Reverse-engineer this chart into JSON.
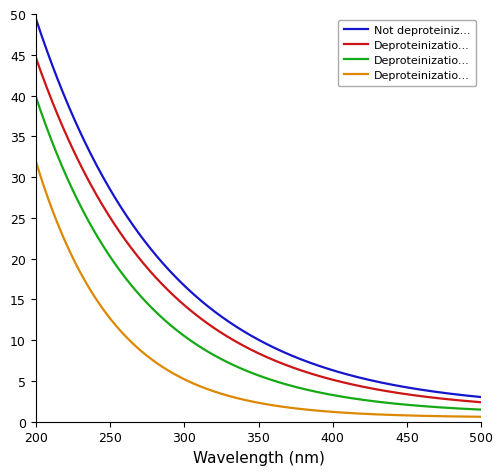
{
  "title": "",
  "xlabel": "Wavelength (nm)",
  "ylabel": "",
  "xlim": [
    200,
    500
  ],
  "ylim": [
    0,
    50
  ],
  "yticks": [
    0,
    5,
    10,
    15,
    20,
    25,
    30,
    35,
    40,
    45,
    50
  ],
  "xticks": [
    200,
    250,
    300,
    350,
    400,
    450,
    500
  ],
  "legend_labels": [
    "Not deproteiniz...",
    "Deproteinizatio...",
    "Deproteinizatio...",
    "Deproteinizatio..."
  ],
  "line_colors": [
    "#1515cc",
    "#cc1515",
    "#15aa15",
    "#dd8800"
  ],
  "line_width": 1.6,
  "background_color": "#ffffff",
  "curve_params": [
    [
      48.0,
      0.0115,
      1.5
    ],
    [
      43.5,
      0.012,
      1.2
    ],
    [
      39.0,
      0.014,
      0.9
    ],
    [
      31.5,
      0.019,
      0.5
    ]
  ]
}
